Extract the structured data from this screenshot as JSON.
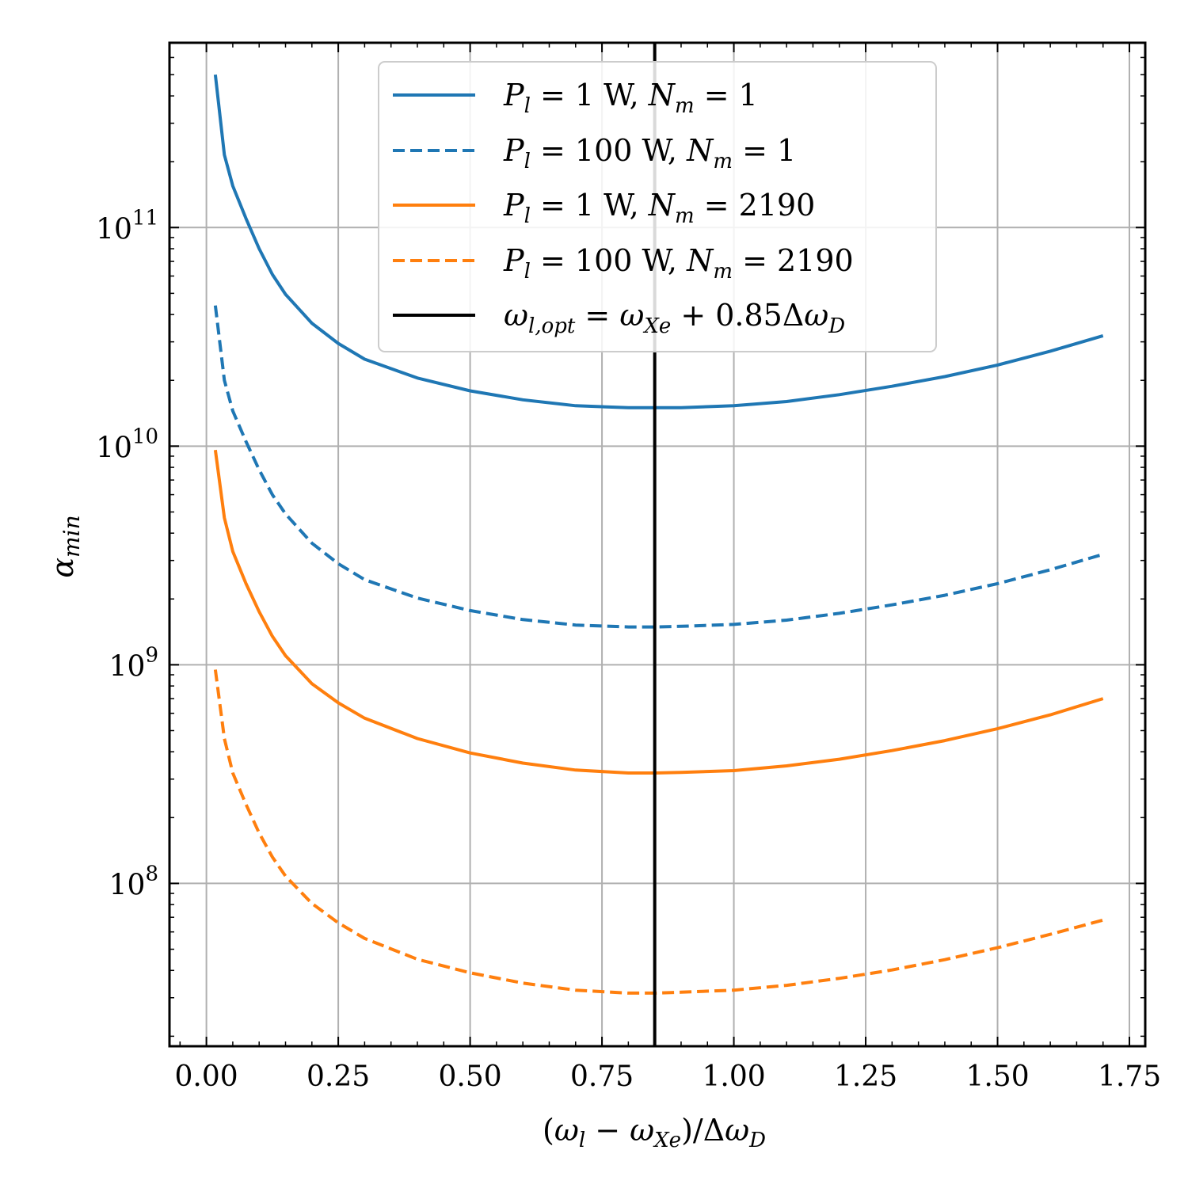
{
  "chart_data": {
    "type": "line",
    "title": "",
    "xlabel": "(ω_l − ω_Xe)/Δω_D",
    "ylabel": "α_min",
    "yscale": "log",
    "xlim": [
      -0.07,
      1.78
    ],
    "ylim": [
      18000000.0,
      700000000000.0
    ],
    "grid": true,
    "legend_position": "top-center",
    "x_ticks": [
      {
        "value": 0.0,
        "label": "0.00"
      },
      {
        "value": 0.25,
        "label": "0.25"
      },
      {
        "value": 0.5,
        "label": "0.50"
      },
      {
        "value": 0.75,
        "label": "0.75"
      },
      {
        "value": 1.0,
        "label": "1.00"
      },
      {
        "value": 1.25,
        "label": "1.25"
      },
      {
        "value": 1.5,
        "label": "1.50"
      },
      {
        "value": 1.75,
        "label": "1.75"
      }
    ],
    "y_ticks": [
      {
        "value": 100000000.0,
        "base": "10",
        "exp": "8"
      },
      {
        "value": 1000000000.0,
        "base": "10",
        "exp": "9"
      },
      {
        "value": 10000000000.0,
        "base": "10",
        "exp": "10"
      },
      {
        "value": 100000000000.0,
        "base": "10",
        "exp": "11"
      }
    ],
    "x": [
      0.017,
      0.034,
      0.05,
      0.075,
      0.1,
      0.125,
      0.15,
      0.2,
      0.25,
      0.3,
      0.4,
      0.5,
      0.6,
      0.7,
      0.8,
      0.85,
      0.9,
      1.0,
      1.1,
      1.2,
      1.3,
      1.4,
      1.5,
      1.6,
      1.7
    ],
    "series": [
      {
        "name": "P_l = 1 W, N_m = 1",
        "legend": {
          "P": "P",
          "Psub": "l",
          "eq1": " = 1 W, ",
          "N": "N",
          "Nsub": "m",
          "eq2": " = 1"
        },
        "color": "#1f77b4",
        "dash": "solid",
        "values": [
          500000000000.0,
          215000000000.0,
          155000000000.0,
          110000000000.0,
          80000000000.0,
          61000000000.0,
          49500000000.0,
          36500000000.0,
          29500000000.0,
          25000000000.0,
          20500000000.0,
          17900000000.0,
          16300000000.0,
          15300000000.0,
          15000000000.0,
          15000000000.0,
          15000000000.0,
          15300000000.0,
          16000000000.0,
          17200000000.0,
          18800000000.0,
          20800000000.0,
          23500000000.0,
          27200000000.0,
          32000000000.0
        ]
      },
      {
        "name": "P_l = 100 W, N_m = 1",
        "legend": {
          "P": "P",
          "Psub": "l",
          "eq1": " = 100 W, ",
          "N": "N",
          "Nsub": "m",
          "eq2": " = 1"
        },
        "color": "#1f77b4",
        "dash": "dashed",
        "values": [
          44000000000.0,
          20000000000.0,
          14500000000.0,
          10500000000.0,
          7800000000.0,
          6000000000.0,
          4900000000.0,
          3600000000.0,
          2900000000.0,
          2450000000.0,
          2020000000.0,
          1770000000.0,
          1610000000.0,
          1520000000.0,
          1490000000.0,
          1490000000.0,
          1500000000.0,
          1530000000.0,
          1600000000.0,
          1720000000.0,
          1880000000.0,
          2080000000.0,
          2350000000.0,
          2720000000.0,
          3200000000.0
        ]
      },
      {
        "name": "P_l = 1 W, N_m = 2190",
        "legend": {
          "P": "P",
          "Psub": "l",
          "eq1": " = 1 W, ",
          "N": "N",
          "Nsub": "m",
          "eq2": " = 2190"
        },
        "color": "#ff7f0e",
        "dash": "solid",
        "values": [
          9600000000.0,
          4700000000.0,
          3300000000.0,
          2350000000.0,
          1750000000.0,
          1350000000.0,
          1100000000.0,
          820000000.0,
          670000000.0,
          570000000.0,
          460000000.0,
          395000000.0,
          355000000.0,
          330000000.0,
          320000000.0,
          320000000.0,
          322000000.0,
          328000000.0,
          345000000.0,
          370000000.0,
          405000000.0,
          450000000.0,
          510000000.0,
          590000000.0,
          700000000.0
        ]
      },
      {
        "name": "P_l = 100 W, N_m = 2190",
        "legend": {
          "P": "P",
          "Psub": "l",
          "eq1": " = 100 W, ",
          "N": "N",
          "Nsub": "m",
          "eq2": " = 2190"
        },
        "color": "#ff7f0e",
        "dash": "dashed",
        "values": [
          950000000.0,
          460000000.0,
          320000000.0,
          230000000.0,
          170000000.0,
          132000000.0,
          108000000.0,
          81000000.0,
          66000000.0,
          56000000.0,
          45000000.0,
          39000000.0,
          35000000.0,
          32500000.0,
          31500000.0,
          31500000.0,
          31800000.0,
          32500000.0,
          34200000.0,
          36800000.0,
          40200000.0,
          44800000.0,
          50800000.0,
          58500000.0,
          68000000.0
        ]
      }
    ],
    "vline": {
      "x": 0.85,
      "name": "ω_l,opt = ω_Xe + 0.85Δω_D",
      "color": "#000000",
      "legend": {
        "w1": "ω",
        "w1sub": "l,opt",
        "mid": " = ",
        "w2": "ω",
        "w2sub": "Xe",
        "tail": " + 0.85Δ",
        "w3": "ω",
        "w3sub": "D"
      }
    },
    "axis_text": {
      "xl_open": "(",
      "xl_w1": "ω",
      "xl_w1sub": "l",
      "xl_minus": " − ",
      "xl_w2": "ω",
      "xl_w2sub": "Xe",
      "xl_close": ")/Δ",
      "xl_w3": "ω",
      "xl_w3sub": "D",
      "yl_main": "α",
      "yl_sub": "min"
    }
  }
}
